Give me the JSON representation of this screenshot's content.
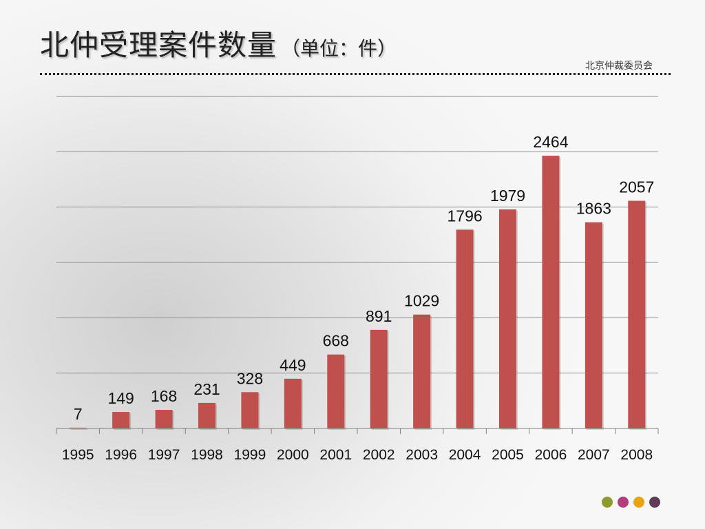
{
  "slide": {
    "title": "北仲受理案件数量",
    "unit": "（单位：件）",
    "org": "北京仲裁委员会"
  },
  "footer": {
    "dot_colors": [
      "#8e9a2f",
      "#b23f7b",
      "#e8a317",
      "#5e3c55"
    ]
  },
  "chart_data": {
    "type": "bar",
    "title": "北仲受理案件数量",
    "xlabel": "",
    "ylabel": "",
    "categories": [
      "1995",
      "1996",
      "1997",
      "1998",
      "1999",
      "2000",
      "2001",
      "2002",
      "2003",
      "2004",
      "2005",
      "2006",
      "2007",
      "2008"
    ],
    "series": [
      {
        "values": [
          7,
          149,
          168,
          231,
          328,
          449,
          668,
          891,
          1029,
          1796,
          1979,
          2464,
          1863,
          2057
        ],
        "color": "#c0504d"
      }
    ],
    "ylim": [
      0,
      3000
    ],
    "grid": true,
    "data_labels": true,
    "legend": "none"
  }
}
